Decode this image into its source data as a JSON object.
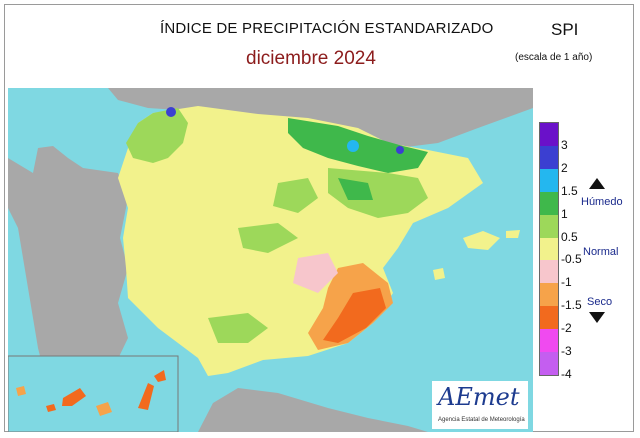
{
  "header": {
    "title": "ÍNDICE DE PRECIPITACIÓN ESTANDARIZADO",
    "subtitle": "diciembre  2024",
    "index_name": "SPI",
    "scale_note": "(escala de 1 año)"
  },
  "legend": {
    "ticks": [
      "3",
      "2",
      "1.5",
      "1",
      "0.5",
      "-0.5",
      "-1",
      "-1.5",
      "-2",
      "-3",
      "-4"
    ],
    "classes": [
      {
        "from": "3",
        "to": "top",
        "color": "#6a11c9"
      },
      {
        "from": "2",
        "to": "3",
        "color": "#3b3fd1"
      },
      {
        "from": "1.5",
        "to": "2",
        "color": "#24b7ef"
      },
      {
        "from": "1",
        "to": "1.5",
        "color": "#3fb84b"
      },
      {
        "from": "0.5",
        "to": "1",
        "color": "#9dd85a"
      },
      {
        "from": "-0.5",
        "to": "0.5",
        "color": "#f2f28c"
      },
      {
        "from": "-1",
        "to": "-0.5",
        "color": "#f7c6cc"
      },
      {
        "from": "-1.5",
        "to": "-1",
        "color": "#f6a34a"
      },
      {
        "from": "-2",
        "to": "-1.5",
        "color": "#f26a1e"
      },
      {
        "from": "-3",
        "to": "-2",
        "color": "#f04af0"
      },
      {
        "from": "-4",
        "to": "-3",
        "color": "#c45ef0"
      }
    ],
    "humid_label": "Húmedo",
    "normal_label": "Normal",
    "dry_label": "Seco"
  },
  "colors": {
    "sea": "#7fd8e2",
    "neighbor_land": "#a8a8a8",
    "normal_fill": "#f2f28c",
    "humid_fill": "#3fb84b",
    "dry_fill": "#f26a1e"
  },
  "map_regions": [
    {
      "name": "Galicia / Cantabrian coast",
      "class": "0.5 to 1.5"
    },
    {
      "name": "Pyrenees / Navarra",
      "class": "1 to 2"
    },
    {
      "name": "Ebro valley / Aragón",
      "class": "0.5 to 1.5"
    },
    {
      "name": "Murcia / Alicante",
      "class": "-2 to -1"
    },
    {
      "name": "Canary Islands",
      "class": "-2 to -1"
    },
    {
      "name": "Balearic Islands",
      "class": "-0.5 to 0.5"
    }
  ],
  "logo": {
    "text": "AEmet",
    "subtext": "Agencia Estatal de Meteorología"
  }
}
